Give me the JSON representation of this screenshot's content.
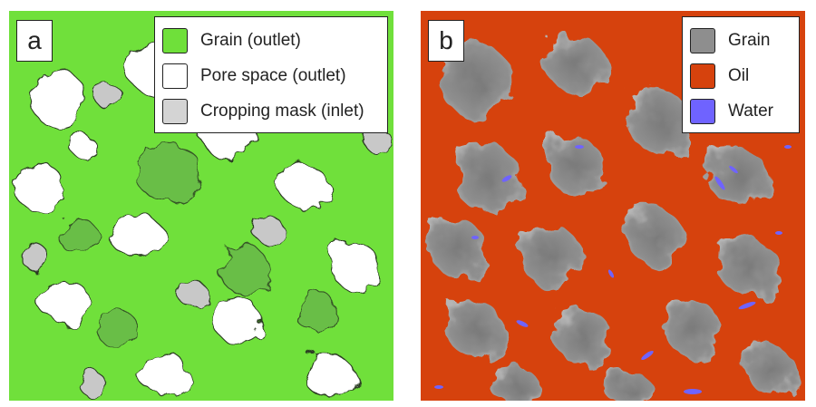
{
  "panels": [
    {
      "label": "a",
      "legend": [
        {
          "label": "Grain (outlet)",
          "color": "#6fe03a"
        },
        {
          "label": "Pore space (outlet)",
          "color": "#ffffff"
        },
        {
          "label": "Cropping mask (inlet)",
          "color": "#d4d4d4"
        }
      ]
    },
    {
      "label": "b",
      "legend": [
        {
          "label": "Grain",
          "color": "#8e8e8e"
        },
        {
          "label": "Oil",
          "color": "#d6420d"
        },
        {
          "label": "Water",
          "color": "#6f63ff"
        }
      ]
    }
  ]
}
